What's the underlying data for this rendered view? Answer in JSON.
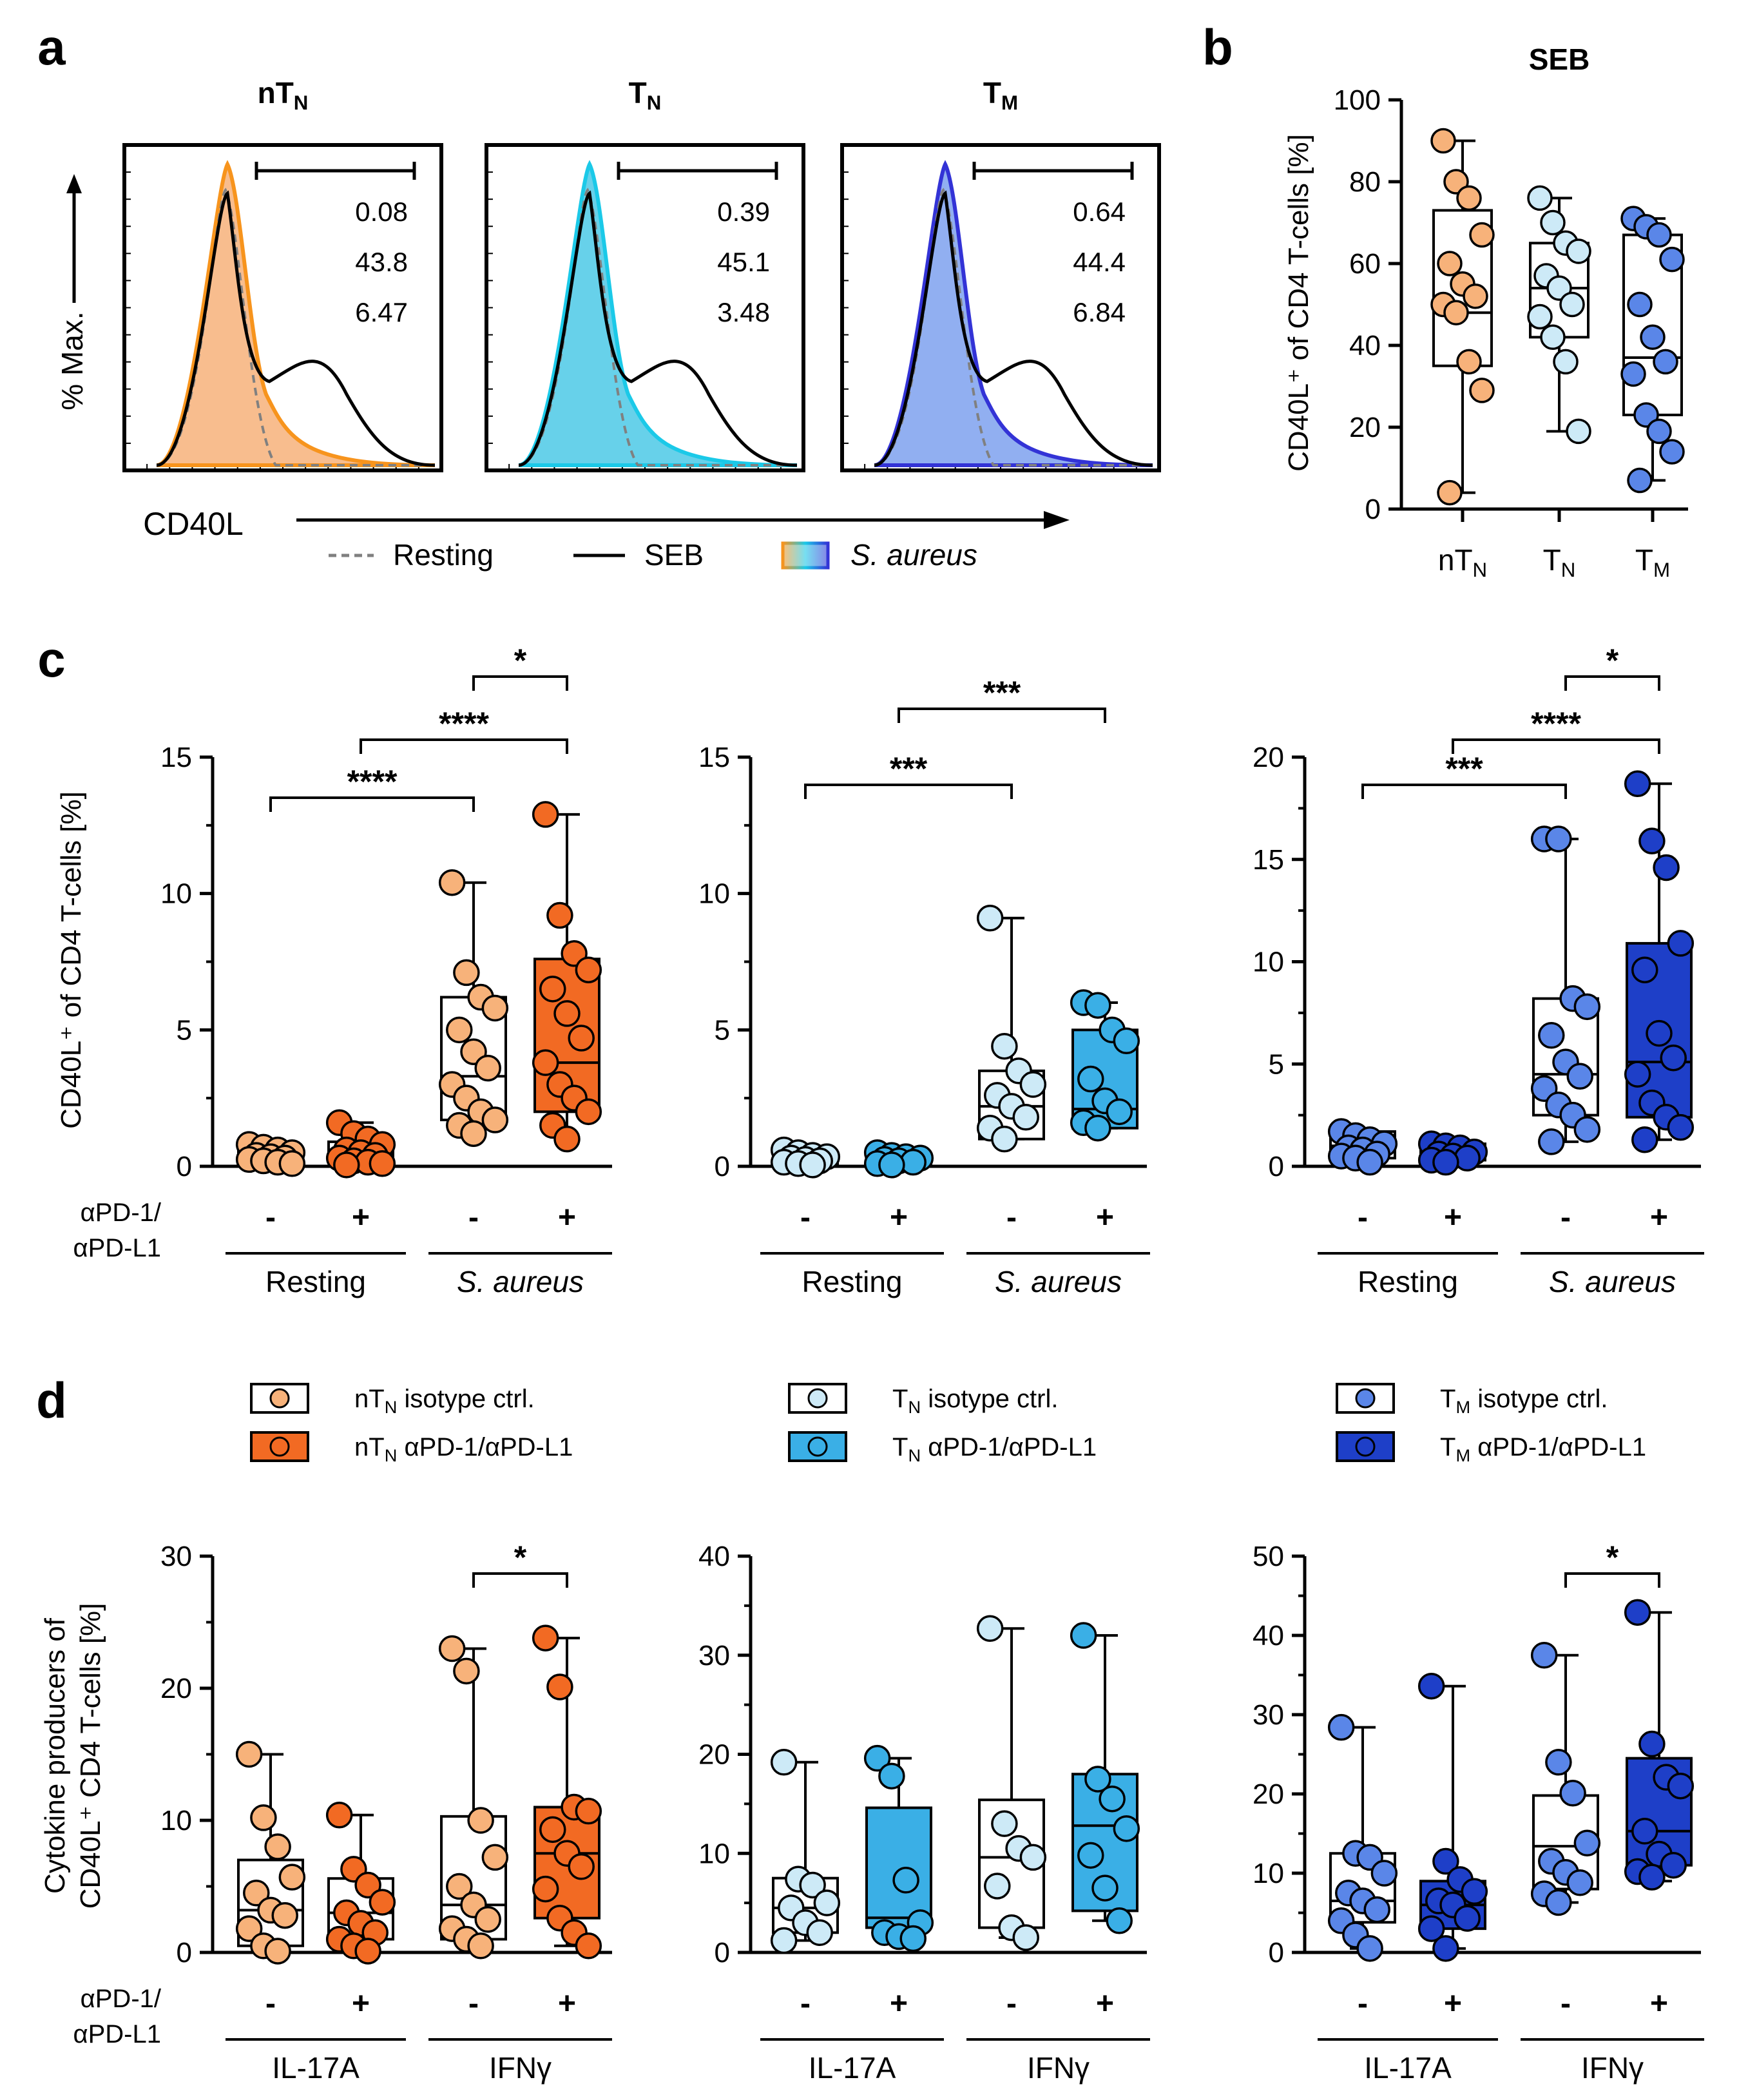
{
  "figure": {
    "panel_letters": [
      "a",
      "b",
      "c",
      "d"
    ]
  },
  "colors": {
    "nTN_light": "#F7B27A",
    "nTN_dark": "#F26A23",
    "nTN_line": "#F7941D",
    "TN_light": "#CDEAF7",
    "TN_dark": "#3AAFE6",
    "TN_line": "#1BC9E8",
    "TM_light": "#5A86E8",
    "TM_dark": "#1E3FC8",
    "TM_line": "#3333D6",
    "resting_gray": "#808080"
  },
  "chart_data": [
    {
      "id": "a",
      "type": "histogram",
      "ylabel": "% Max.",
      "xlabel": "CD40L",
      "legend": {
        "resting": "Resting",
        "seb": "SEB",
        "saureus": "S. aureus"
      },
      "subpanels": [
        {
          "title": "nT",
          "sub": "N",
          "gate_values": [
            "0.08",
            "43.8",
            "6.47"
          ],
          "fill": "nTN"
        },
        {
          "title": "T",
          "sub": "N",
          "gate_values": [
            "0.39",
            "45.1",
            "3.48"
          ],
          "fill": "TN"
        },
        {
          "title": "T",
          "sub": "M",
          "gate_values": [
            "0.64",
            "44.4",
            "6.84"
          ],
          "fill": "TM"
        }
      ]
    },
    {
      "id": "b",
      "type": "box",
      "title": "SEB",
      "ylabel": "CD40L⁺ of CD4 T-cells [%]",
      "ylim": [
        0,
        100
      ],
      "yticks": [
        0,
        20,
        40,
        60,
        80,
        100
      ],
      "groups": [
        {
          "label": "nT",
          "sub": "N",
          "color": "nTN_light",
          "box": {
            "min": 4,
            "q1": 35,
            "median": 48,
            "q3": 73,
            "max": 90
          },
          "points": [
            90,
            80,
            76,
            67,
            60,
            55,
            52,
            50,
            48,
            36,
            29,
            4
          ]
        },
        {
          "label": "T",
          "sub": "N",
          "color": "TN_light",
          "box": {
            "min": 19,
            "q1": 42,
            "median": 54,
            "q3": 65,
            "max": 76
          },
          "points": [
            76,
            70,
            65,
            63,
            57,
            54,
            50,
            47,
            42,
            36,
            19
          ]
        },
        {
          "label": "T",
          "sub": "M",
          "color": "TM_light",
          "box": {
            "min": 7,
            "q1": 23,
            "median": 37,
            "q3": 67,
            "max": 71
          },
          "points": [
            71,
            69,
            67,
            61,
            50,
            42,
            36,
            33,
            23,
            19,
            14,
            7
          ]
        }
      ]
    },
    {
      "id": "c1",
      "type": "box",
      "ylabel": "CD40L⁺ of CD4 T-cells [%]",
      "ylim": [
        0,
        15
      ],
      "yticks": [
        0,
        5,
        10,
        15
      ],
      "treatment_label": [
        "αPD-1/",
        "αPD-L1"
      ],
      "signs": [
        "-",
        "+",
        "-",
        "+"
      ],
      "condition_labels": [
        "Resting",
        "S. aureus"
      ],
      "significance": [
        {
          "from": 0,
          "to": 2,
          "label": "****",
          "level": 1
        },
        {
          "from": 1,
          "to": 3,
          "label": "****",
          "level": 2
        },
        {
          "from": 2,
          "to": 3,
          "label": "*",
          "level": 3
        }
      ],
      "groups": [
        {
          "color": "nTN_light",
          "fill_box": false,
          "box": {
            "min": 0.1,
            "q1": 0.2,
            "median": 0.35,
            "q3": 0.6,
            "max": 0.8
          },
          "points": [
            0.8,
            0.7,
            0.6,
            0.5,
            0.4,
            0.35,
            0.3,
            0.25,
            0.2,
            0.15,
            0.1
          ]
        },
        {
          "color": "nTN_dark",
          "fill_box": false,
          "box": {
            "min": 0.05,
            "q1": 0.15,
            "median": 0.4,
            "q3": 0.9,
            "max": 1.6
          },
          "points": [
            1.6,
            1.2,
            1.0,
            0.8,
            0.6,
            0.5,
            0.4,
            0.3,
            0.2,
            0.15,
            0.1,
            0.05
          ]
        },
        {
          "color": "nTN_light",
          "fill_box": false,
          "box": {
            "min": 1.2,
            "q1": 1.7,
            "median": 3.3,
            "q3": 6.2,
            "max": 10.4
          },
          "points": [
            10.4,
            7.1,
            6.2,
            5.8,
            5.0,
            4.2,
            3.6,
            3.0,
            2.5,
            2.0,
            1.7,
            1.5,
            1.2
          ]
        },
        {
          "color": "nTN_dark",
          "fill_box": true,
          "box": {
            "min": 1.0,
            "q1": 2.0,
            "median": 3.8,
            "q3": 7.6,
            "max": 12.9
          },
          "points": [
            12.9,
            9.2,
            7.8,
            7.2,
            6.5,
            5.6,
            4.7,
            3.8,
            3.0,
            2.5,
            2.0,
            1.5,
            1.0
          ]
        }
      ]
    },
    {
      "id": "c2",
      "type": "box",
      "ylim": [
        0,
        15
      ],
      "yticks": [
        0,
        5,
        10,
        15
      ],
      "signs": [
        "-",
        "+",
        "-",
        "+"
      ],
      "condition_labels": [
        "Resting",
        "S. aureus"
      ],
      "significance": [
        {
          "from": 0,
          "to": 2,
          "label": "***",
          "level": 1
        },
        {
          "from": 1,
          "to": 3,
          "label": "***",
          "level": 2
        }
      ],
      "groups": [
        {
          "color": "TN_light",
          "fill_box": false,
          "box": {
            "min": 0.05,
            "q1": 0.1,
            "median": 0.25,
            "q3": 0.4,
            "max": 0.6
          },
          "points": [
            0.6,
            0.5,
            0.4,
            0.35,
            0.3,
            0.25,
            0.2,
            0.15,
            0.1,
            0.05
          ]
        },
        {
          "color": "TN_dark",
          "fill_box": false,
          "box": {
            "min": 0.05,
            "q1": 0.1,
            "median": 0.2,
            "q3": 0.3,
            "max": 0.5
          },
          "points": [
            0.5,
            0.4,
            0.35,
            0.3,
            0.25,
            0.2,
            0.15,
            0.1,
            0.05
          ]
        },
        {
          "color": "TN_light",
          "fill_box": false,
          "box": {
            "min": 1.0,
            "q1": 1.0,
            "median": 2.2,
            "q3": 3.5,
            "max": 9.1
          },
          "points": [
            9.1,
            4.4,
            3.5,
            3.0,
            2.6,
            2.2,
            1.8,
            1.4,
            1.0
          ]
        },
        {
          "color": "TN_dark",
          "fill_box": true,
          "box": {
            "min": 1.4,
            "q1": 1.4,
            "median": 2.1,
            "q3": 5.0,
            "max": 6.0
          },
          "points": [
            6.0,
            5.9,
            5.0,
            4.6,
            3.2,
            2.4,
            2.0,
            1.6,
            1.4
          ]
        }
      ]
    },
    {
      "id": "c3",
      "type": "box",
      "ylim": [
        0,
        20
      ],
      "yticks": [
        0,
        5,
        10,
        15,
        20
      ],
      "signs": [
        "-",
        "+",
        "-",
        "+"
      ],
      "condition_labels": [
        "Resting",
        "S. aureus"
      ],
      "significance": [
        {
          "from": 0,
          "to": 2,
          "label": "***",
          "level": 1
        },
        {
          "from": 1,
          "to": 3,
          "label": "****",
          "level": 2
        },
        {
          "from": 2,
          "to": 3,
          "label": "*",
          "level": 3
        }
      ],
      "groups": [
        {
          "color": "TM_light",
          "fill_box": false,
          "box": {
            "min": 0.2,
            "q1": 0.4,
            "median": 1.0,
            "q3": 1.7,
            "max": 1.7
          },
          "points": [
            1.7,
            1.5,
            1.3,
            1.1,
            0.9,
            0.8,
            0.6,
            0.5,
            0.4,
            0.2
          ]
        },
        {
          "color": "TM_dark",
          "fill_box": false,
          "box": {
            "min": 0.2,
            "q1": 0.3,
            "median": 0.6,
            "q3": 1.1,
            "max": 1.1
          },
          "points": [
            1.1,
            1.0,
            0.9,
            0.7,
            0.6,
            0.5,
            0.4,
            0.3,
            0.2
          ]
        },
        {
          "color": "TM_light",
          "fill_box": false,
          "box": {
            "min": 1.2,
            "q1": 2.5,
            "median": 4.5,
            "q3": 8.2,
            "max": 16.0
          },
          "points": [
            16.0,
            16.0,
            8.2,
            7.8,
            6.4,
            5.1,
            4.4,
            3.8,
            3.0,
            2.5,
            1.8,
            1.2
          ]
        },
        {
          "color": "TM_dark",
          "fill_box": true,
          "box": {
            "min": 1.3,
            "q1": 2.4,
            "median": 5.1,
            "q3": 10.9,
            "max": 18.7
          },
          "points": [
            18.7,
            15.9,
            14.6,
            10.9,
            9.6,
            6.5,
            5.3,
            4.5,
            3.1,
            2.4,
            1.9,
            1.3
          ]
        }
      ]
    },
    {
      "id": "d1",
      "type": "box",
      "ylabel": [
        "Cytokine producers of",
        "CD40L⁺ CD4 T-cells [%]"
      ],
      "ylim": [
        0,
        30
      ],
      "yticks": [
        0,
        10,
        20,
        30
      ],
      "treatment_label": [
        "αPD-1/",
        "αPD-L1"
      ],
      "signs": [
        "-",
        "+",
        "-",
        "+"
      ],
      "condition_labels": [
        "IL-17A",
        "IFNγ"
      ],
      "significance": [
        {
          "from": 2,
          "to": 3,
          "label": "*",
          "level": 3
        }
      ],
      "legend": [
        {
          "text": "nT",
          "sub": "N",
          "rest": " isotype ctrl.",
          "color": "nTN_light",
          "filled": false
        },
        {
          "text": "nT",
          "sub": "N",
          "rest": " αPD-1/αPD-L1",
          "color": "nTN_dark",
          "filled": true
        }
      ],
      "groups": [
        {
          "color": "nTN_light",
          "fill_box": false,
          "box": {
            "min": 0.1,
            "q1": 0.5,
            "median": 3.2,
            "q3": 7.0,
            "max": 15.0
          },
          "points": [
            15.0,
            10.2,
            8.0,
            5.7,
            4.5,
            3.2,
            2.8,
            1.8,
            0.5,
            0.1
          ]
        },
        {
          "color": "nTN_dark",
          "fill_box": false,
          "box": {
            "min": 0.1,
            "q1": 1.0,
            "median": 3.0,
            "q3": 5.6,
            "max": 10.4
          },
          "points": [
            10.4,
            6.3,
            5.1,
            3.8,
            3.0,
            2.2,
            1.5,
            1.0,
            0.5,
            0.1
          ]
        },
        {
          "color": "nTN_light",
          "fill_box": false,
          "box": {
            "min": 0.2,
            "q1": 1.0,
            "median": 3.6,
            "q3": 10.3,
            "max": 23.0
          },
          "points": [
            23.0,
            21.3,
            10.0,
            7.2,
            5.0,
            3.6,
            2.5,
            1.8,
            1.0,
            0.5
          ]
        },
        {
          "color": "nTN_dark",
          "fill_box": true,
          "box": {
            "min": 0.5,
            "q1": 2.6,
            "median": 7.5,
            "q3": 11.0,
            "max": 23.8
          },
          "points": [
            23.8,
            20.1,
            11.0,
            10.7,
            9.3,
            7.5,
            6.5,
            4.8,
            2.6,
            1.5,
            0.5
          ]
        }
      ]
    },
    {
      "id": "d2",
      "type": "box",
      "ylim": [
        0,
        40
      ],
      "yticks": [
        0,
        10,
        20,
        30,
        40
      ],
      "signs": [
        "-",
        "+",
        "-",
        "+"
      ],
      "condition_labels": [
        "IL-17A",
        "IFNγ"
      ],
      "significance": [],
      "legend": [
        {
          "text": "T",
          "sub": "N",
          "rest": " isotype ctrl.",
          "color": "TN_light",
          "filled": false
        },
        {
          "text": "T",
          "sub": "N",
          "rest": " αPD-1/αPD-L1",
          "color": "TN_dark",
          "filled": true
        }
      ],
      "groups": [
        {
          "color": "TN_light",
          "fill_box": false,
          "box": {
            "min": 1.2,
            "q1": 2.0,
            "median": 4.5,
            "q3": 7.5,
            "max": 19.2
          },
          "points": [
            19.2,
            7.4,
            6.8,
            5.0,
            4.5,
            3.0,
            2.0,
            1.2
          ]
        },
        {
          "color": "TN_dark",
          "fill_box": true,
          "box": {
            "min": 1.4,
            "q1": 2.5,
            "median": 3.5,
            "q3": 14.6,
            "max": 19.6
          },
          "points": [
            19.6,
            17.8,
            7.3,
            3.0,
            2.0,
            1.6,
            1.4
          ]
        },
        {
          "color": "TN_light",
          "fill_box": false,
          "box": {
            "min": 1.5,
            "q1": 2.5,
            "median": 9.6,
            "q3": 15.4,
            "max": 32.7
          },
          "points": [
            32.7,
            13.0,
            10.5,
            9.6,
            6.7,
            2.5,
            1.5
          ]
        },
        {
          "color": "TN_dark",
          "fill_box": true,
          "box": {
            "min": 3.2,
            "q1": 4.2,
            "median": 12.8,
            "q3": 18.0,
            "max": 32.0
          },
          "points": [
            32.0,
            17.5,
            15.5,
            12.5,
            9.8,
            6.5,
            3.2
          ]
        }
      ]
    },
    {
      "id": "d3",
      "type": "box",
      "ylim": [
        0,
        50
      ],
      "yticks": [
        0,
        10,
        20,
        30,
        40,
        50
      ],
      "signs": [
        "-",
        "+",
        "-",
        "+"
      ],
      "condition_labels": [
        "IL-17A",
        "IFNγ"
      ],
      "significance": [
        {
          "from": 2,
          "to": 3,
          "label": "*",
          "level": 3
        }
      ],
      "legend": [
        {
          "text": "T",
          "sub": "M",
          "rest": " isotype ctrl.",
          "color": "TM_light",
          "filled": false
        },
        {
          "text": "T",
          "sub": "M",
          "rest": " αPD-1/αPD-L1",
          "color": "TM_dark",
          "filled": true
        }
      ],
      "groups": [
        {
          "color": "TM_light",
          "fill_box": false,
          "box": {
            "min": 0.5,
            "q1": 3.8,
            "median": 6.5,
            "q3": 12.5,
            "max": 28.4
          },
          "points": [
            28.4,
            12.5,
            12.0,
            10.0,
            7.5,
            6.5,
            5.4,
            4.0,
            2.2,
            0.5
          ]
        },
        {
          "color": "TM_dark",
          "fill_box": true,
          "box": {
            "min": 0.5,
            "q1": 3.0,
            "median": 6.0,
            "q3": 9.0,
            "max": 33.6
          },
          "points": [
            33.6,
            11.5,
            9.2,
            7.7,
            6.5,
            6.0,
            4.3,
            3.0,
            0.5
          ]
        },
        {
          "color": "TM_light",
          "fill_box": false,
          "box": {
            "min": 6.3,
            "q1": 8.0,
            "median": 13.4,
            "q3": 19.8,
            "max": 37.5
          },
          "points": [
            37.5,
            24.0,
            20.1,
            13.8,
            11.5,
            10.1,
            8.8,
            7.4,
            6.3
          ]
        },
        {
          "color": "TM_dark",
          "fill_box": true,
          "box": {
            "min": 9.0,
            "q1": 11.0,
            "median": 15.3,
            "q3": 24.5,
            "max": 42.9
          },
          "points": [
            42.9,
            26.3,
            22.1,
            21.0,
            15.3,
            12.4,
            11.0,
            10.2,
            9.5
          ]
        }
      ]
    }
  ]
}
